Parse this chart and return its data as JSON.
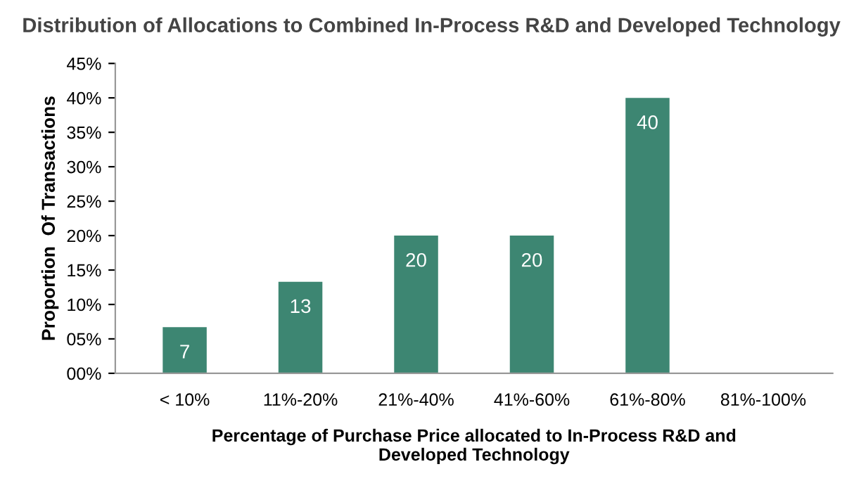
{
  "chart_data": {
    "type": "bar",
    "title": "Distribution of Allocations to Combined In-Process R&D and Developed Technology",
    "xlabel": "Percentage of Purchase Price allocated to In-Process R&D and\nDeveloped Technology",
    "ylabel": "Proportion  Of Transactions",
    "categories": [
      "< 10%",
      "11%-20%",
      "21%-40%",
      "41%-60%",
      "61%-80%",
      "81%-100%"
    ],
    "values": [
      6.7,
      13.3,
      20,
      20,
      40,
      0
    ],
    "value_labels": [
      "7",
      "13",
      "20",
      "20",
      "40",
      null
    ],
    "color": "#3d8672",
    "ylim": [
      0,
      45
    ],
    "yticks": [
      {
        "value": 0,
        "label": "00%"
      },
      {
        "value": 5,
        "label": "05%"
      },
      {
        "value": 10,
        "label": "10%"
      },
      {
        "value": 15,
        "label": "15%"
      },
      {
        "value": 20,
        "label": "20%"
      },
      {
        "value": 25,
        "label": "25%"
      },
      {
        "value": 30,
        "label": "30%"
      },
      {
        "value": 35,
        "label": "35%"
      },
      {
        "value": 40,
        "label": "40%"
      },
      {
        "value": 45,
        "label": "45%"
      }
    ],
    "grid": false,
    "legend": false
  }
}
